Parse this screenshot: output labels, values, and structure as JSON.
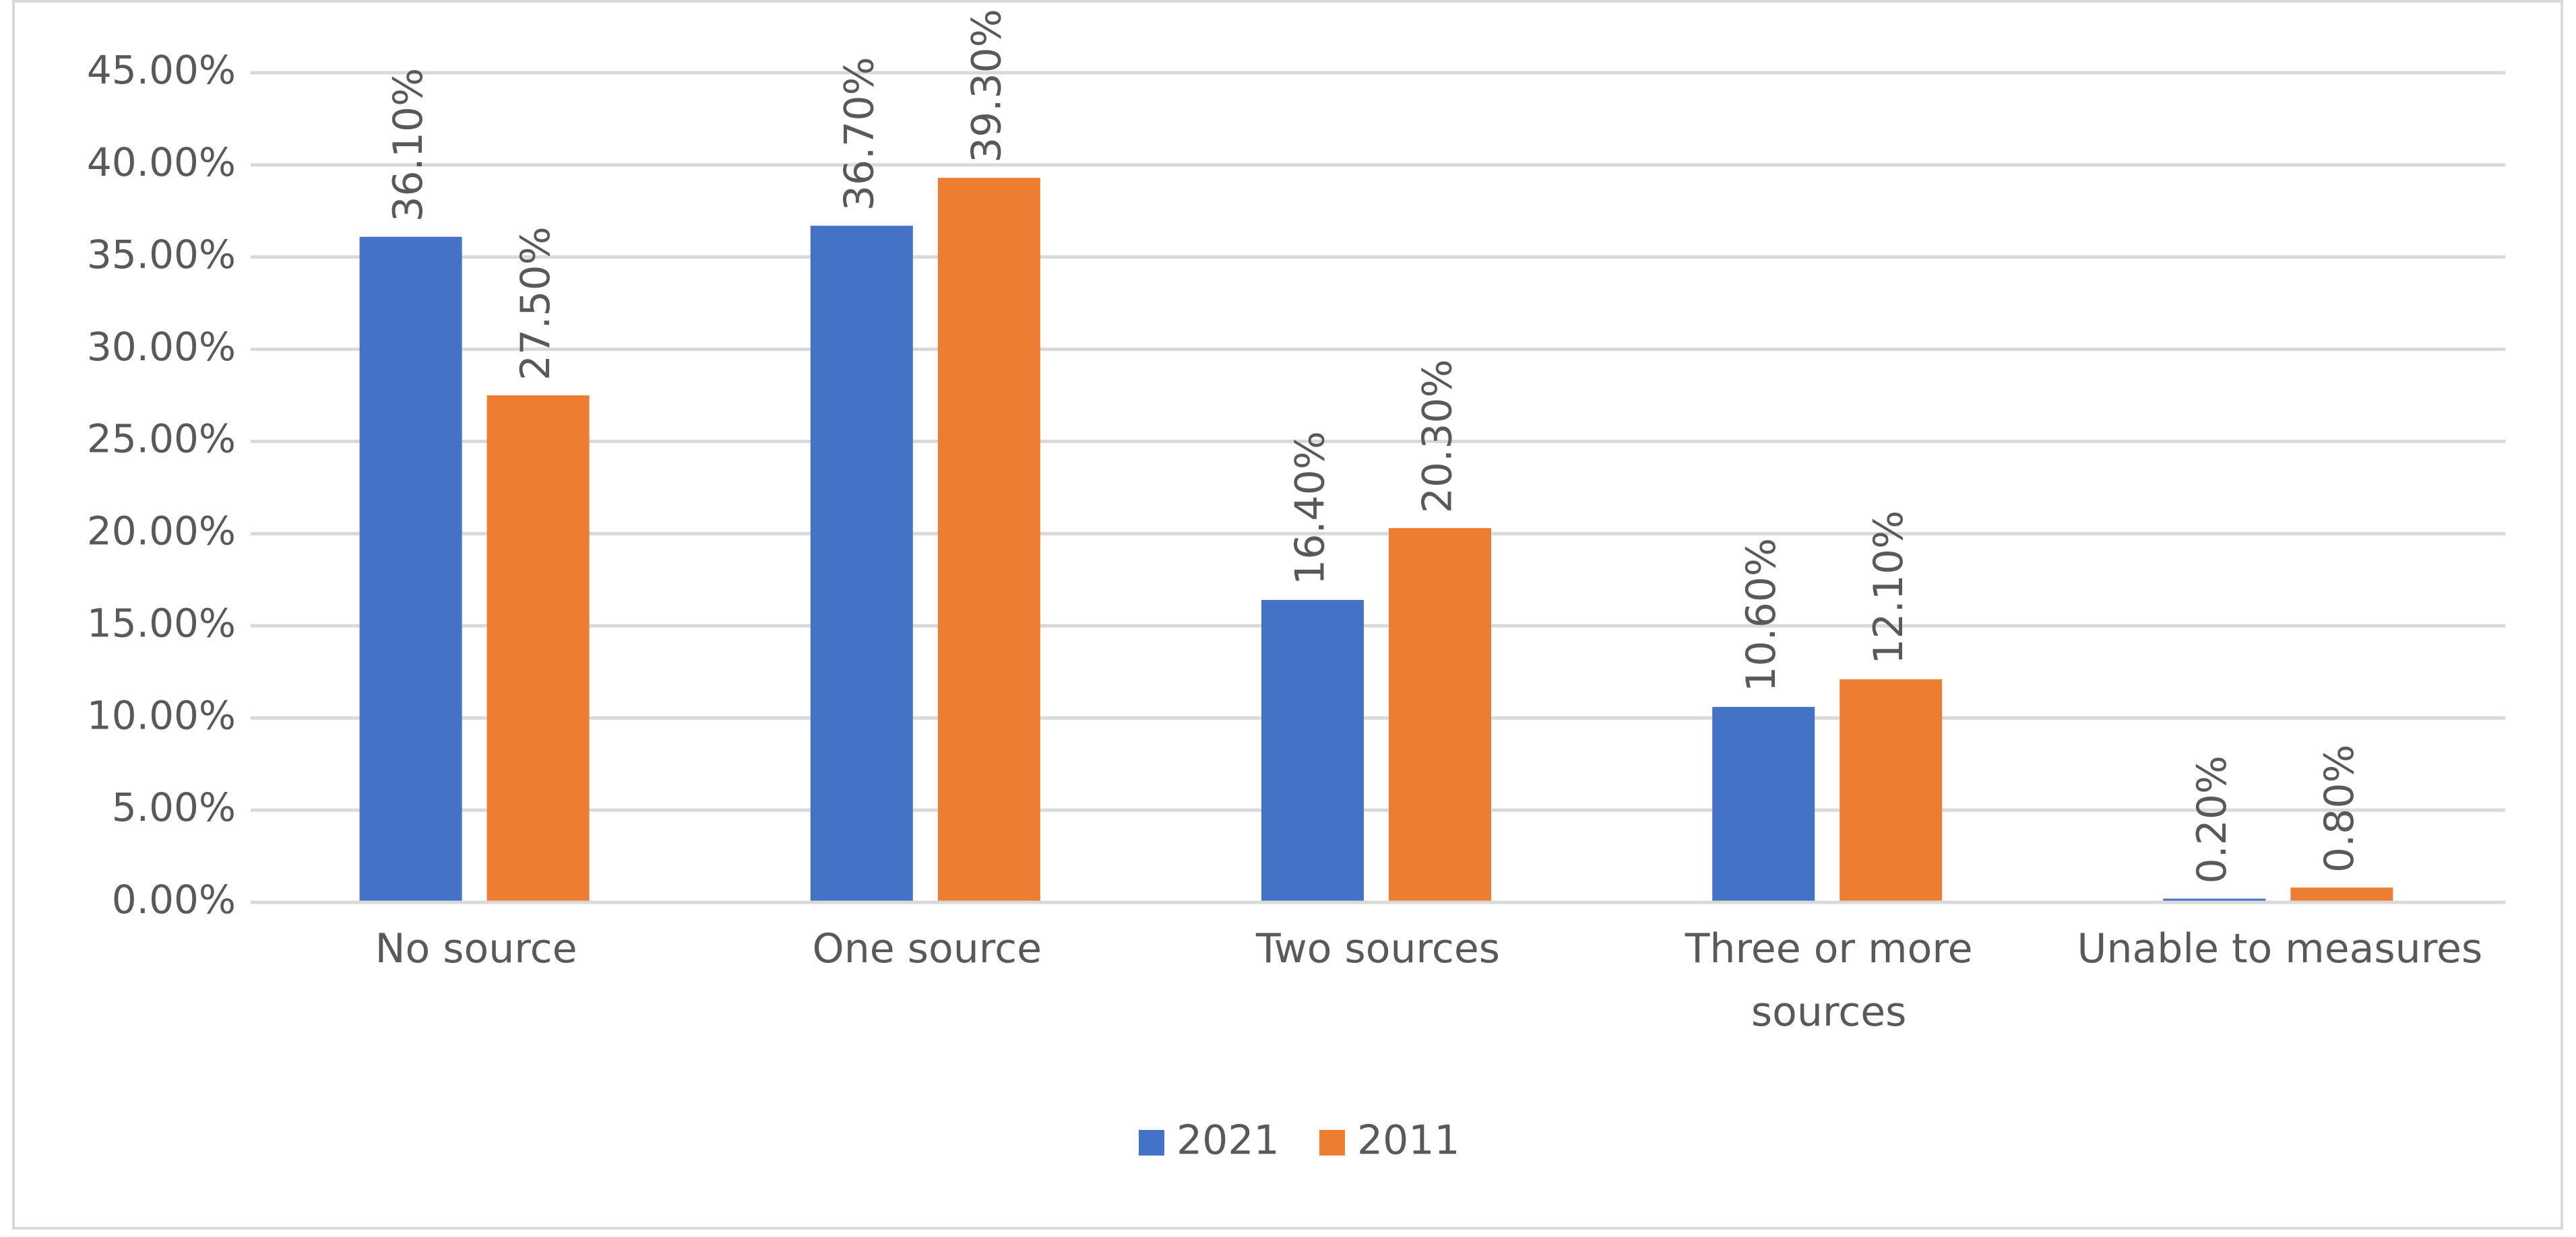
{
  "chart_data": {
    "type": "bar",
    "categories": [
      "No source",
      "One source",
      "Two sources",
      "Three or more sources",
      "Unable to measures"
    ],
    "series": [
      {
        "name": "2021",
        "color": "#4472c4",
        "values": [
          36.1,
          36.7,
          16.4,
          10.6,
          0.2
        ],
        "value_labels": [
          "36.10%",
          "36.70%",
          "16.40%",
          "10.60%",
          "0.20%"
        ]
      },
      {
        "name": "2011",
        "color": "#ed7d31",
        "values": [
          27.5,
          39.3,
          20.3,
          12.1,
          0.8
        ],
        "value_labels": [
          "27.50%",
          "39.30%",
          "20.30%",
          "12.10%",
          "0.80%"
        ]
      }
    ],
    "ylim": [
      0,
      45
    ],
    "yticks": [
      {
        "value": 0,
        "label": "0.00%"
      },
      {
        "value": 5,
        "label": "5.00%"
      },
      {
        "value": 10,
        "label": "10.00%"
      },
      {
        "value": 15,
        "label": "15.00%"
      },
      {
        "value": 20,
        "label": "20.00%"
      },
      {
        "value": 25,
        "label": "25.00%"
      },
      {
        "value": 30,
        "label": "30.00%"
      },
      {
        "value": 35,
        "label": "35.00%"
      },
      {
        "value": 40,
        "label": "40.00%"
      },
      {
        "value": 45,
        "label": "45.00%"
      }
    ],
    "grid": true,
    "legend": "bottom"
  }
}
